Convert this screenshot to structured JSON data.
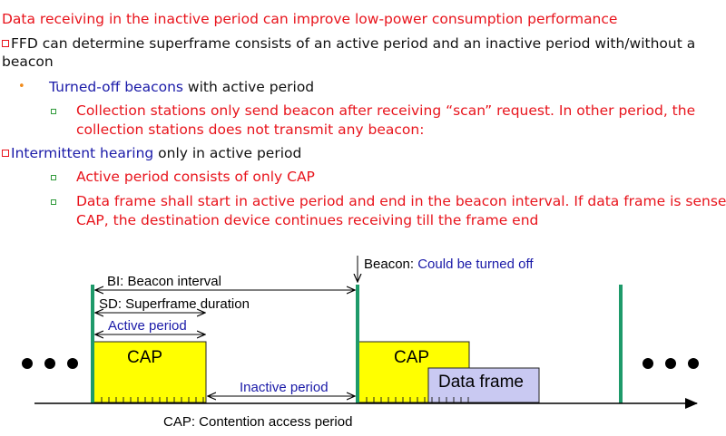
{
  "slide": {
    "heading": "Data receiving in the inactive period can improve low-power consumption performance",
    "ffd_line1": "FFD can determine superframe consists of an active period and an inactive period with/without a",
    "ffd_line2": "beacon",
    "turned_off_blue": "Turned-off beacons",
    "turned_off_rest": " with active period",
    "collection_line1": "Collection stations only send beacon after receiving  “scan” request. In other period, the",
    "collection_line2": "collection stations does not transmit any beacon:",
    "intermittent_blue": "Intermittent hearing",
    "intermittent_rest": " only in active period",
    "cap_only": "Active period consists of only CAP",
    "dataframe_line1": "Data frame shall start in active period and end in the beacon interval. If data frame is sensed in",
    "dataframe_line2": "CAP, the destination device continues receiving till the frame end"
  },
  "diagram": {
    "bi_label": "BI: Beacon interval",
    "sd_label": "SD: Superframe duration",
    "active_label": "Active period",
    "cap1_label": "CAP",
    "cap2_label": "CAP",
    "data_frame_label": "Data frame",
    "inactive_label": "Inactive period",
    "beacon_label": "Beacon: ",
    "beacon_note": "Could be turned off",
    "footnote": "CAP: Contention access period",
    "colors": {
      "cap_fill": "#ffff00",
      "data_frame_fill": "#c9c9f2",
      "beacon_bar": "#1e9a6a",
      "text_red": "#e8141c",
      "text_blue": "#1a1aa8"
    }
  }
}
